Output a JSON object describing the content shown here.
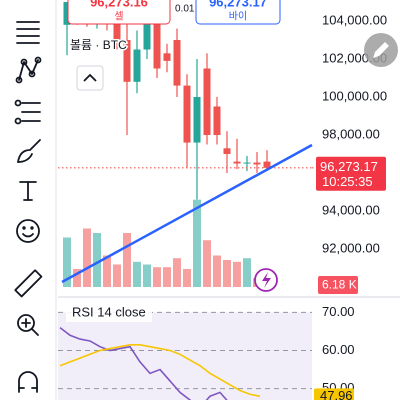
{
  "order_panel": {
    "sell": {
      "price": "96,273.16",
      "label": "셀"
    },
    "spread": "0.01",
    "buy": {
      "price": "96,273.17",
      "label": "바이"
    }
  },
  "chart_data": [
    {
      "type": "candlestick",
      "legend": "볼륨 · BTC",
      "open": [
        103800,
        105000,
        104300,
        104000,
        104500,
        104200,
        103000,
        100800,
        102500,
        104000,
        102300,
        103000,
        100600,
        97600,
        101500,
        99500,
        97300,
        96600,
        96500,
        96550,
        96600
      ],
      "high": [
        105000,
        105000,
        104600,
        105000,
        105000,
        104600,
        104000,
        103500,
        105000,
        105000,
        102800,
        103600,
        101200,
        102000,
        102300,
        100000,
        98200,
        97800,
        96900,
        97100,
        97200
      ],
      "low": [
        102200,
        103800,
        103700,
        103600,
        103500,
        102500,
        98000,
        100200,
        102000,
        101000,
        101300,
        100000,
        96300,
        94600,
        97500,
        97500,
        96000,
        96200,
        96100,
        96000,
        96100
      ],
      "close": [
        105000,
        104300,
        104000,
        104500,
        104200,
        103000,
        100800,
        102500,
        104000,
        101500,
        101900,
        100600,
        97600,
        100000,
        98000,
        98000,
        97000,
        96500,
        96550,
        96450,
        96273.17
      ],
      "up_color": "#26a69a",
      "down_color": "#ef5350",
      "ylim": [
        90000,
        105000
      ],
      "yticks": [
        {
          "value": 92000,
          "label": "92,000.00"
        },
        {
          "value": 94000,
          "label": "94,000.00"
        },
        {
          "value": 98000,
          "label": "98,000.00"
        },
        {
          "value": 100000,
          "label": "100,000.00"
        },
        {
          "value": 102000,
          "label": "102,000.00"
        },
        {
          "value": 104000,
          "label": "104,000.00"
        }
      ],
      "last_price_label": "96,273.17",
      "countdown": "10:25:35",
      "volume": [
        55,
        20,
        65,
        60,
        35,
        25,
        60,
        28,
        25,
        22,
        22,
        32,
        20,
        97,
        52,
        35,
        30,
        28,
        32,
        10,
        6.18
      ],
      "volume_label": "6.18 K",
      "vlim": [
        0,
        100
      ]
    },
    {
      "type": "line",
      "title": "RSI 14 close",
      "series": [
        {
          "color": "#7e57c2",
          "values": [
            66,
            64,
            63,
            62.5,
            61,
            60,
            60.5,
            61,
            57,
            54,
            55,
            52,
            49,
            47,
            45,
            48,
            49,
            46,
            44,
            45,
            44
          ]
        },
        {
          "color": "#f7c600",
          "values": [
            56,
            57,
            58,
            59,
            60,
            60.5,
            61,
            61.5,
            61.5,
            61,
            60.5,
            60,
            59,
            57.5,
            56,
            54,
            52.5,
            51,
            49.5,
            48.5,
            47.96
          ],
          "last_label": "47.96"
        }
      ],
      "ylim": [
        47,
        73
      ],
      "yticks": [
        {
          "value": 70,
          "label": "70.00"
        },
        {
          "value": 60,
          "label": "60.00"
        },
        {
          "value": 50,
          "label": "50.00"
        }
      ]
    }
  ]
}
